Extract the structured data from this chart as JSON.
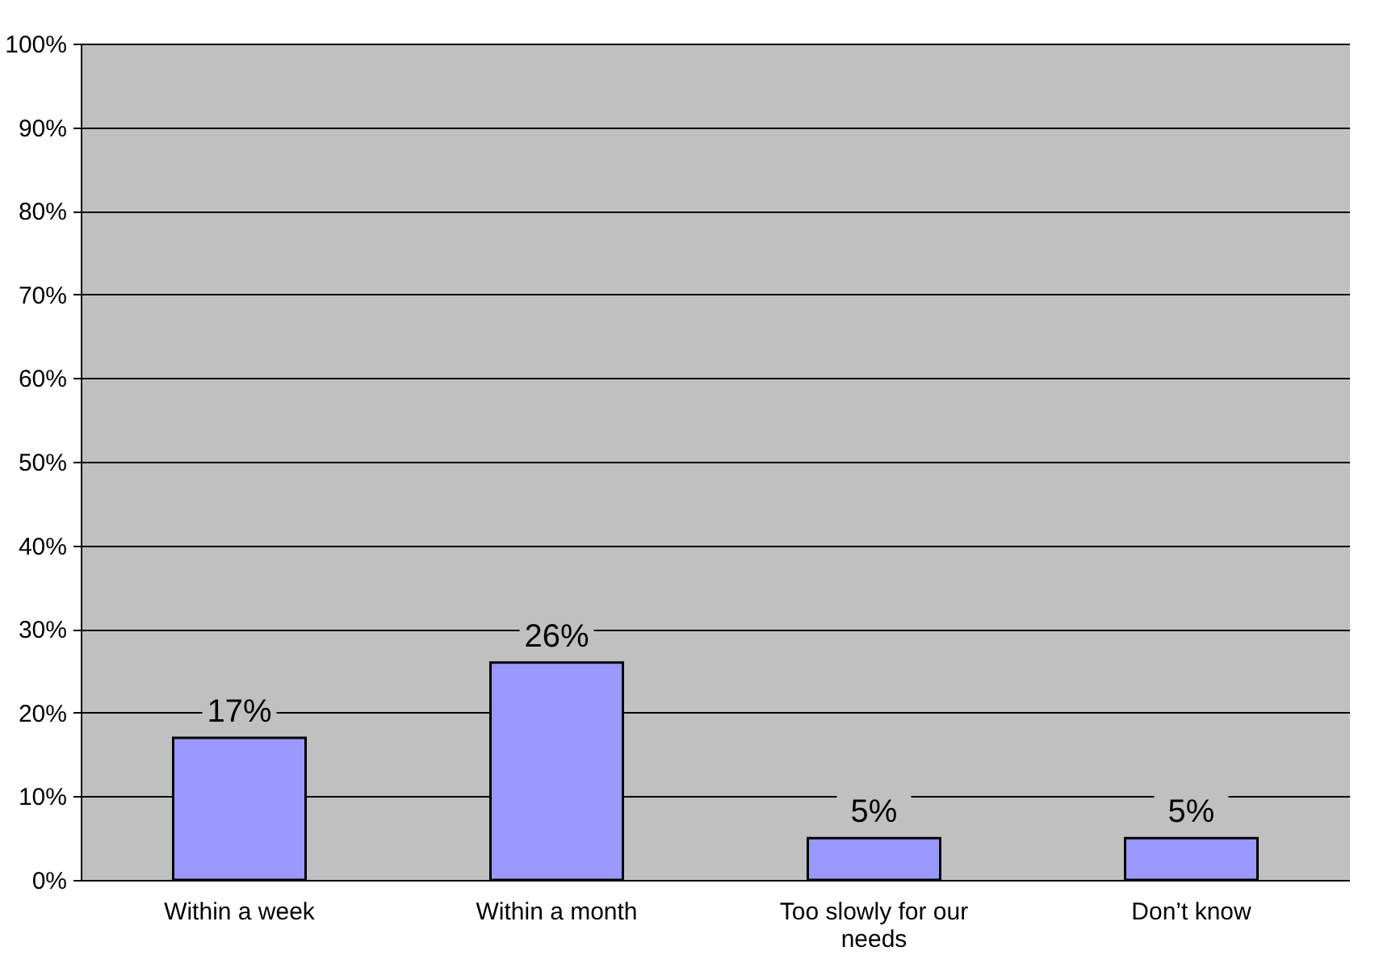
{
  "chart_data": {
    "type": "bar",
    "categories": [
      "Within a week",
      "Within a month",
      "Too slowly for our needs",
      "Don’t know"
    ],
    "values": [
      17,
      26,
      5,
      5
    ],
    "color": "#9999ff",
    "value_labels": [
      "17%",
      "26%",
      "5%",
      "5%"
    ],
    "ylim": [
      0,
      100
    ],
    "yticks": [
      {
        "value": 0,
        "label": "0%"
      },
      {
        "value": 10,
        "label": "10%"
      },
      {
        "value": 20,
        "label": "20%"
      },
      {
        "value": 30,
        "label": "30%"
      },
      {
        "value": 40,
        "label": "40%"
      },
      {
        "value": 50,
        "label": "50%"
      },
      {
        "value": 60,
        "label": "60%"
      },
      {
        "value": 70,
        "label": "70%"
      },
      {
        "value": 80,
        "label": "80%"
      },
      {
        "value": 90,
        "label": "90%"
      },
      {
        "value": 100,
        "label": "100%"
      }
    ],
    "grid": "y"
  }
}
